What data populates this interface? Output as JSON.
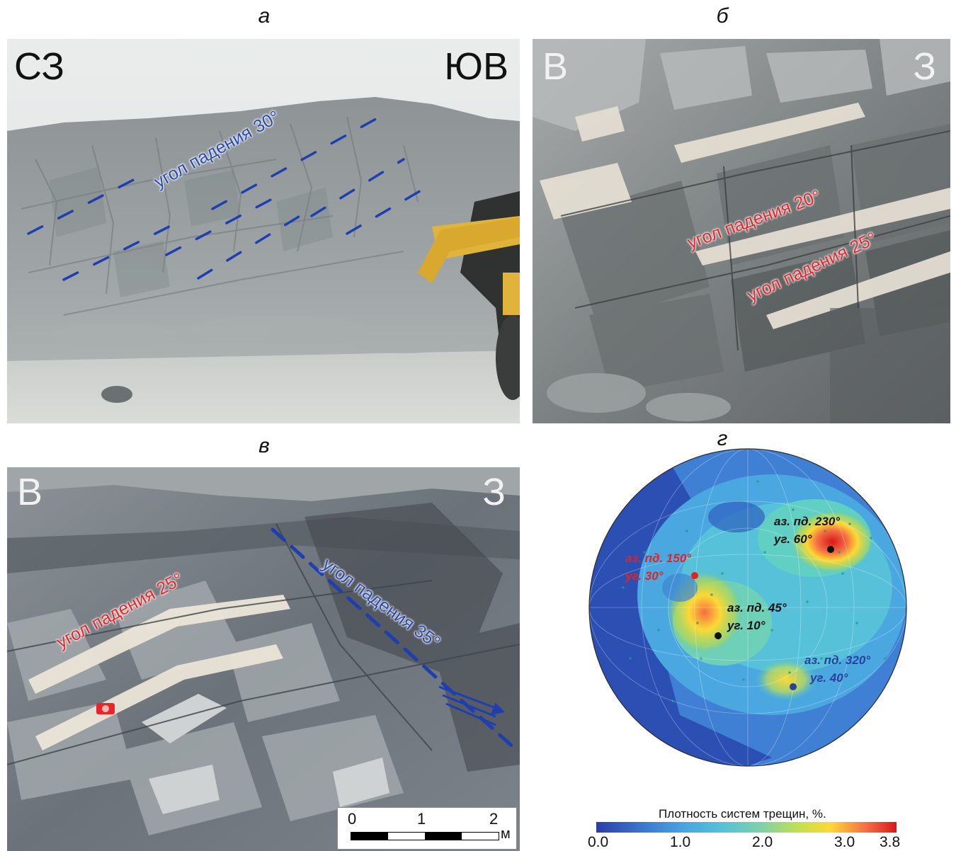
{
  "panels": {
    "a": {
      "letter": "а",
      "left_label": "СЗ",
      "right_label": "ЮВ",
      "annotation": "угол падения 30°"
    },
    "b": {
      "letter": "б",
      "left_label": "В",
      "right_label": "З",
      "annotation_1": "угол падения 20°",
      "annotation_2": "угол падения 25°"
    },
    "c": {
      "letter": "в",
      "left_label": "В",
      "right_label": "З",
      "annotation_red": "угол падения 25°",
      "annotation_blue": "угол падения 35°",
      "scale": {
        "ticks": [
          "0",
          "1",
          "2"
        ],
        "unit": "м"
      }
    },
    "d": {
      "letter": "г",
      "points": [
        {
          "line1": "аз. пд. 230°",
          "line2": "уг. 60°",
          "color": "#111111"
        },
        {
          "line1": "аз. пд. 150°",
          "line2": "уг. 30°",
          "color": "#e02424"
        },
        {
          "line1": "аз. пд. 45°",
          "line2": "уг. 10°",
          "color": "#111111"
        },
        {
          "line1": "аз. пд. 320°",
          "line2": "уг. 40°",
          "color": "#2a3f9e"
        }
      ],
      "colorbar": {
        "title": "Плотность систем трещин, %.",
        "ticks": [
          "0.0",
          "1.0",
          "2.0",
          "3.0",
          "3.8"
        ]
      }
    }
  },
  "colors": {
    "blue_annotation": "#2949b5",
    "red_annotation": "#e8262a",
    "dash_blue": "#1f3fb0"
  }
}
